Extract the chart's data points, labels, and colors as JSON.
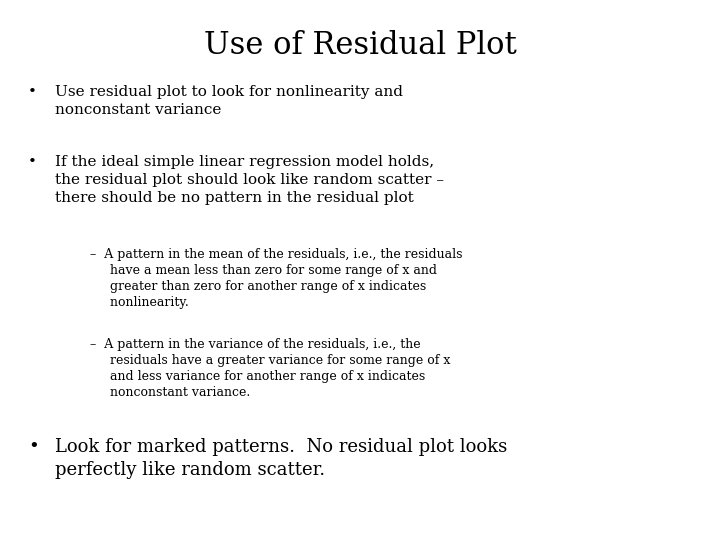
{
  "title": "Use of Residual Plot",
  "background_color": "#ffffff",
  "text_color": "#000000",
  "title_fontsize": 22,
  "body_fontsize": 11,
  "sub_fontsize": 9,
  "bullet3_fontsize": 13,
  "title_font": "serif",
  "body_font": "serif",
  "bullet1": "Use residual plot to look for nonlinearity and\nnonconstant variance",
  "bullet2_line1": "If the ideal simple linear regression model holds,",
  "bullet2_line2": "the residual plot should look like random scatter –",
  "bullet2_line3": "there should be no pattern in the residual plot",
  "sub1_line1": "–  A pattern in the mean of the residuals, i.e., the residuals",
  "sub1_line2": "     have a mean less than zero for some range of x and",
  "sub1_line3": "     greater than zero for another range of x indicates",
  "sub1_line4": "     nonlinearity.",
  "sub2_line1": "–  A pattern in the variance of the residuals, i.e., the",
  "sub2_line2": "     residuals have a greater variance for some range of x",
  "sub2_line3": "     and less variance for another range of x indicates",
  "sub2_line4": "     nonconstant variance.",
  "bullet3_line1": "Look for marked patterns.  No residual plot looks",
  "bullet3_line2": "perfectly like random scatter."
}
